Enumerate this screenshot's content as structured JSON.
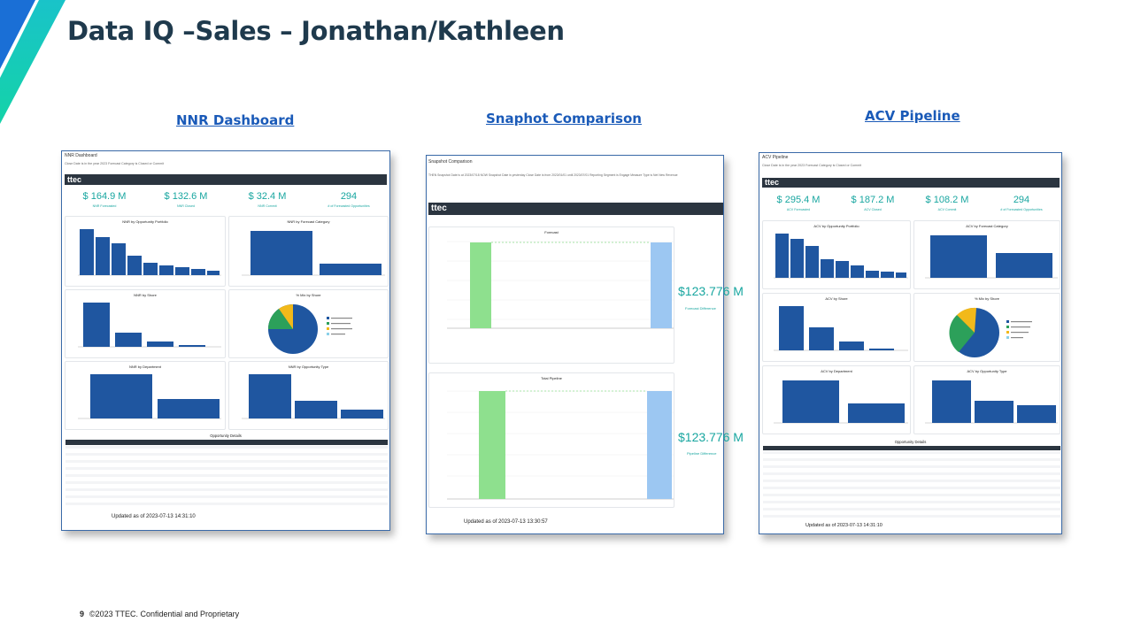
{
  "slide": {
    "title": "Data IQ –Sales – Jonathan/Kathleen",
    "page_number": "9",
    "footer": "©2023 TTEC. Confidential and Proprietary"
  },
  "links": {
    "nnr": "NNR Dashboard ",
    "snapshot": "Snaphot Comparison",
    "acv": "ACV Pipeline "
  },
  "nnr": {
    "title": "NNR Dashboard",
    "filter": "Close Date is in the year 2023     Forecast Category is Closed or Commit",
    "brand": "ttec",
    "kpis": [
      {
        "value": "$ 164.9 M",
        "label": "NNR Forecasted"
      },
      {
        "value": "$ 132.6 M",
        "label": "NNR Closed"
      },
      {
        "value": "$ 32.4 M",
        "label": "NNR Commit"
      },
      {
        "value": "294",
        "label": "# of Forecasted Opportunities"
      }
    ],
    "panels": {
      "portfolio": "NNR by Opportunity Portfolio",
      "forecast": "NNR by Forecast Category",
      "shore": "NNR by Shore",
      "mix": "% Mix by Shore",
      "department": "NNR by Department",
      "opptype": "NNR by Opportunity Type"
    },
    "details_title": "Opportunity Details",
    "updated": "Updated as of 2023-07-13 14:31:10"
  },
  "snapshot": {
    "title": "Snapshot Comparison",
    "filter": "THEN Snapshot Date is at 2023/07/18    NOW Snapshot Date is yesterday    Close Date is from 2023/01/01 until 2023/07/01    Reporting Segment is Engage    Measure Type is Net New Revenue",
    "brand": "ttec",
    "forecast_title": "Forecast",
    "pipeline_title": "Total Pipeline",
    "forecast_diff_value": "$123.776 M",
    "forecast_diff_label": "Forecast Difference",
    "pipeline_diff_value": "$123.776 M",
    "pipeline_diff_label": "Pipeline Difference",
    "updated": "Updated as of 2023-07-13 13:30:57"
  },
  "acv": {
    "title": "ACV Pipeline",
    "filter": "Close Date is in the year 2023     Forecast Category is Closed or Commit",
    "brand": "ttec",
    "kpis": [
      {
        "value": "$ 295.4 M",
        "label": "ACV Forecasted"
      },
      {
        "value": "$ 187.2 M",
        "label": "ACV Closed"
      },
      {
        "value": "$ 108.2 M",
        "label": "ACV Commit"
      },
      {
        "value": "294",
        "label": "# of Forecasted Opportunities"
      }
    ],
    "panels": {
      "portfolio": "ACV by Opportunity Portfolio",
      "forecast": "ACV by Forecast Category",
      "shore": "ACV by Shore",
      "mix": "% Mix by Shore",
      "department": "ACV by Department",
      "opptype": "ACV by Opportunity Type"
    },
    "details_title": "Opportunity Details",
    "updated": "Updated as of 2023-07-13 14:31:10"
  },
  "colors": {
    "title": "#1f3a4d",
    "link": "#1a5ab8",
    "kpi": "#18a6a0",
    "bar": "#1f56a0",
    "brand_bar": "#2b3540",
    "pie_onshore": "#1f56a0",
    "pie_offshore": "#2ca05a",
    "pie_nearshore": "#f2b91a",
    "snapshot_green": "#8ee08e",
    "snapshot_blue": "#9cc7f2",
    "accent_teal": "#19c3c9",
    "accent_green": "#14d3a8"
  }
}
